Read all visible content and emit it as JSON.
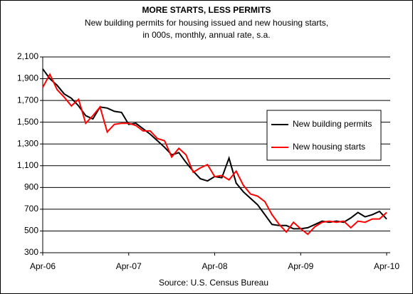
{
  "chart_data": {
    "type": "line",
    "title": "MORE STARTS, LESS PERMITS",
    "subtitle": [
      "New building permits for housing issued and new housing starts,",
      "in 000s, monthly, annual rate, s.a."
    ],
    "source": "Source: U.S. Census Bureau",
    "categories": [
      "Apr-06",
      null,
      null,
      null,
      null,
      null,
      null,
      null,
      null,
      null,
      null,
      null,
      "Apr-07",
      null,
      null,
      null,
      null,
      null,
      null,
      null,
      null,
      null,
      null,
      null,
      "Apr-08",
      null,
      null,
      null,
      null,
      null,
      null,
      null,
      null,
      null,
      null,
      null,
      "Apr-09",
      null,
      null,
      null,
      null,
      null,
      null,
      null,
      null,
      null,
      null,
      null,
      "Apr-10"
    ],
    "series": [
      {
        "name": "New building permits",
        "color": "#000000",
        "values": [
          1990,
          1900,
          1840,
          1760,
          1720,
          1650,
          1560,
          1530,
          1640,
          1630,
          1600,
          1590,
          1480,
          1490,
          1440,
          1390,
          1330,
          1270,
          1200,
          1220,
          1130,
          1050,
          980,
          960,
          1000,
          990,
          1170,
          940,
          860,
          800,
          740,
          650,
          560,
          550,
          550,
          520,
          520,
          530,
          560,
          590,
          580,
          590,
          580,
          620,
          670,
          630,
          650,
          680,
          610
        ]
      },
      {
        "name": "New housing starts",
        "color": "#ff0000",
        "values": [
          1820,
          1940,
          1800,
          1730,
          1650,
          1710,
          1490,
          1560,
          1640,
          1410,
          1480,
          1490,
          1490,
          1470,
          1420,
          1420,
          1350,
          1330,
          1180,
          1260,
          1200,
          1040,
          1080,
          1110,
          1000,
          1010,
          970,
          1050,
          920,
          840,
          820,
          770,
          650,
          560,
          490,
          580,
          520,
          470,
          540,
          580,
          590,
          580,
          590,
          530,
          590,
          580,
          610,
          610,
          670
        ]
      }
    ],
    "ylim": [
      300,
      2100
    ],
    "yticks": [
      300,
      500,
      700,
      900,
      {
        "value": 1100,
        "label": "1,100"
      },
      {
        "value": 1300,
        "label": "1,300"
      },
      {
        "value": 1500,
        "label": "1,500"
      },
      {
        "value": 1700,
        "label": "1,700"
      },
      {
        "value": 1900,
        "label": "1,900"
      },
      {
        "value": 2100,
        "label": "2,100"
      }
    ],
    "grid": true,
    "legend": "right"
  }
}
